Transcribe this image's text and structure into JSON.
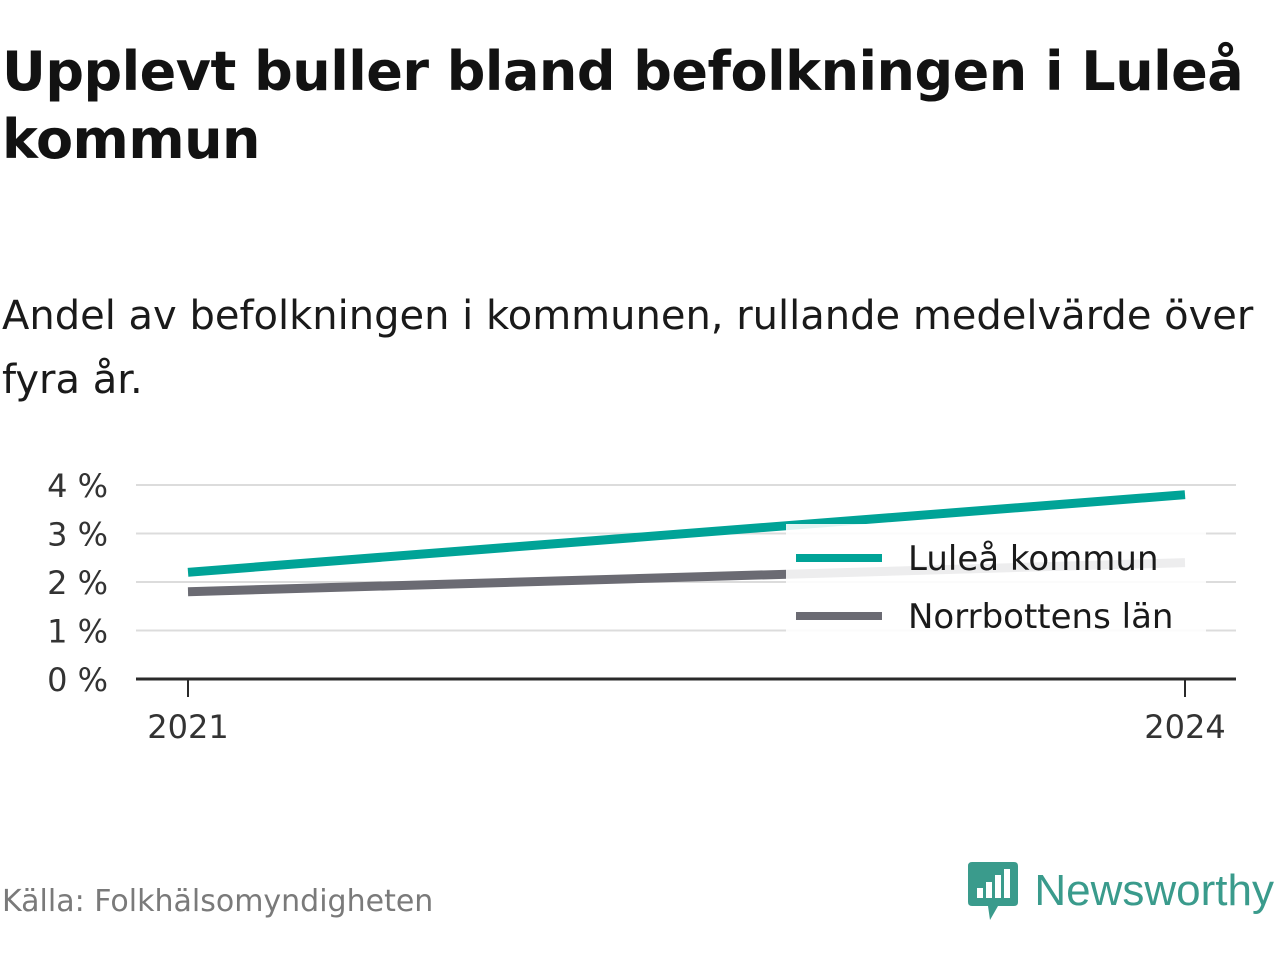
{
  "title": "Upplevt buller bland befolkningen i Luleå kommun",
  "subtitle": "Andel av befolkningen i kommunen, rullande medelvärde över fyra år.",
  "source": "Källa: Folkhälsomyndigheten",
  "brand": {
    "name": "Newsworthy",
    "icon": "newsworthy-logo-icon",
    "color": "#3a9b8c"
  },
  "chart_data": {
    "type": "line",
    "x": [
      2021,
      2024
    ],
    "x_ticks": [
      "2021",
      "2024"
    ],
    "y_ticks": [
      "0 %",
      "1 %",
      "2 %",
      "3 %",
      "4 %"
    ],
    "ylim": [
      0,
      4
    ],
    "grid": true,
    "legend": "bottom-right",
    "series": [
      {
        "name": "Luleå kommun",
        "values": [
          2.2,
          3.8
        ],
        "color": "#00a397"
      },
      {
        "name": "Norrbottens län",
        "values": [
          1.8,
          2.4
        ],
        "color": "#6b6b73"
      }
    ]
  }
}
